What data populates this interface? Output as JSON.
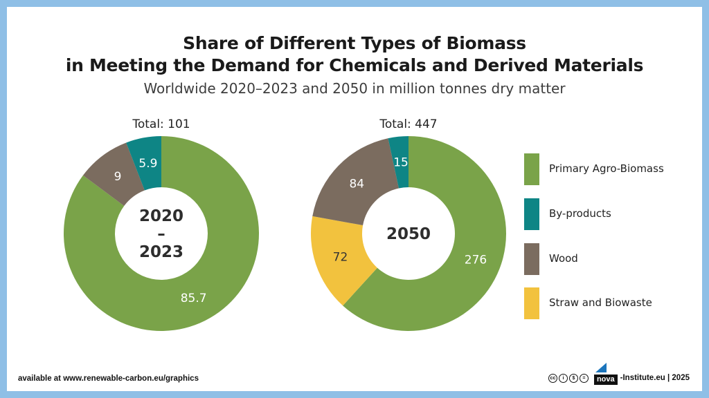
{
  "title_line1": "Share of Different Types of Biomass",
  "title_line2": "in Meeting the Demand for Chemicals and Derived Materials",
  "subtitle": "Worldwide 2020–2023 and 2050 in million tonnes dry matter",
  "colors": {
    "primary_agro": "#7aa349",
    "by_products": "#0e8585",
    "wood": "#7b6c5f",
    "straw": "#f2c23e",
    "center_text": "#2d2d2d"
  },
  "chart_data": [
    {
      "type": "pie",
      "variant": "donut",
      "total_label": "Total: 101",
      "center_label_lines": [
        "2020",
        "–",
        "2023"
      ],
      "slices": [
        {
          "name": "Primary Agro-Biomass",
          "value": 85.7,
          "label": "85.7",
          "color_key": "primary_agro"
        },
        {
          "name": "Wood",
          "value": 9,
          "label": "9",
          "color_key": "wood"
        },
        {
          "name": "By-products",
          "value": 5.9,
          "label": "5.9",
          "color_key": "by_products"
        }
      ]
    },
    {
      "type": "pie",
      "variant": "donut",
      "total_label": "Total: 447",
      "center_label_lines": [
        "2050"
      ],
      "slices": [
        {
          "name": "Primary Agro-Biomass",
          "value": 276,
          "label": "276",
          "color_key": "primary_agro"
        },
        {
          "name": "Straw and Biowaste",
          "value": 72,
          "label": "72",
          "color_key": "straw"
        },
        {
          "name": "Wood",
          "value": 84,
          "label": "84",
          "color_key": "wood"
        },
        {
          "name": "By-products",
          "value": 15,
          "label": "15",
          "color_key": "by_products"
        }
      ]
    }
  ],
  "legend": [
    {
      "label": "Primary Agro-Biomass",
      "color_key": "primary_agro"
    },
    {
      "label": "By-products",
      "color_key": "by_products"
    },
    {
      "label": "Wood",
      "color_key": "wood"
    },
    {
      "label": "Straw and Biowaste",
      "color_key": "straw"
    }
  ],
  "footer": {
    "source": "available at www.renewable-carbon.eu/graphics",
    "logo_text": "nova",
    "credit": "-Institute.eu | 2025",
    "license_icons": [
      "cc",
      "by",
      "nc",
      "nd"
    ]
  }
}
